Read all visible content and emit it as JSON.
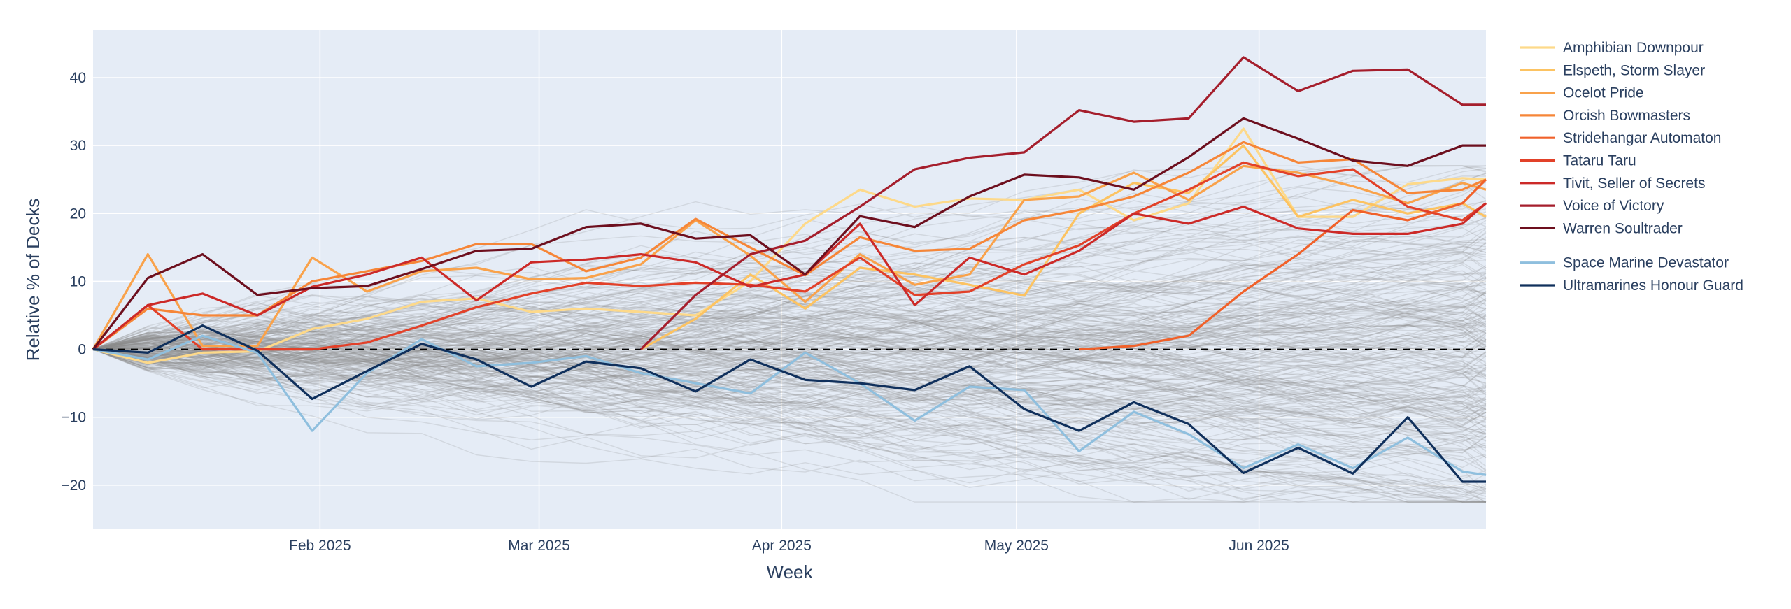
{
  "chart_data": {
    "type": "line",
    "xlabel": "Week",
    "ylabel": "Relative % of Decks",
    "ylim": [
      -26.5,
      47
    ],
    "xlim": [
      "2025-01-03",
      "2025-06-30"
    ],
    "x_ticks": [
      {
        "date": "2025-02-01",
        "label": "Feb 2025"
      },
      {
        "date": "2025-03-01",
        "label": "Mar 2025"
      },
      {
        "date": "2025-04-01",
        "label": "Apr 2025"
      },
      {
        "date": "2025-05-01",
        "label": "May 2025"
      },
      {
        "date": "2025-06-01",
        "label": "Jun 2025"
      }
    ],
    "y_ticks": [
      -20,
      -10,
      0,
      10,
      20,
      30,
      40
    ],
    "grid": true,
    "reference_line": {
      "y": 0,
      "style": "dashed",
      "color": "#000000"
    },
    "background_series": {
      "count": 260,
      "color": "#8c8c8c",
      "description_range": [
        -22,
        27
      ]
    },
    "legend_position": "right",
    "x": [
      "2025-01-03",
      "2025-01-10",
      "2025-01-17",
      "2025-01-24",
      "2025-01-31",
      "2025-02-07",
      "2025-02-14",
      "2025-02-21",
      "2025-02-28",
      "2025-03-07",
      "2025-03-14",
      "2025-03-21",
      "2025-03-28",
      "2025-04-04",
      "2025-04-11",
      "2025-04-18",
      "2025-04-25",
      "2025-05-02",
      "2025-05-09",
      "2025-05-16",
      "2025-05-23",
      "2025-05-30",
      "2025-06-06",
      "2025-06-13",
      "2025-06-20",
      "2025-06-27",
      "2025-06-30"
    ],
    "series": [
      {
        "name": "Amphibian Downpour",
        "color": "#fdd98a",
        "values": [
          0,
          -2,
          -0.5,
          -0.3,
          3,
          4.5,
          7,
          7.5,
          5.5,
          6,
          null,
          5,
          10,
          18.5,
          23.5,
          21,
          22.2,
          22,
          23.5,
          19,
          21.5,
          32.5,
          19.5,
          19.5,
          24.3,
          25.2,
          25
        ]
      },
      {
        "name": "Elspeth, Storm Slayer",
        "color": "#fcc362",
        "values": [
          null,
          null,
          null,
          null,
          null,
          null,
          null,
          null,
          null,
          null,
          0,
          4.5,
          11,
          6,
          12,
          11,
          9.5,
          7.9,
          20,
          24.5,
          23,
          30,
          19.5,
          22,
          20,
          21.5,
          19.5
        ]
      },
      {
        "name": "Ocelot Pride",
        "color": "#f9a24b",
        "values": [
          0,
          14,
          0.5,
          0.5,
          13.5,
          8.5,
          11.5,
          12,
          10.3,
          10.5,
          12.5,
          19,
          13.8,
          7,
          14,
          9.5,
          11,
          22,
          22.5,
          26,
          22,
          27,
          26,
          24,
          21.5,
          24.5,
          23.5
        ]
      },
      {
        "name": "Orcish Bowmasters",
        "color": "#f68638",
        "values": [
          0,
          6,
          5,
          5,
          10,
          11.5,
          13,
          15.5,
          15.5,
          11.5,
          13.5,
          19.2,
          15,
          10.9,
          16.5,
          14.5,
          14.8,
          19,
          20.5,
          22.5,
          26,
          30.5,
          27.5,
          28,
          23,
          23.5,
          25
        ]
      },
      {
        "name": "Stridehangar Automaton",
        "color": "#f0612a",
        "values": [
          null,
          null,
          null,
          null,
          null,
          null,
          null,
          null,
          null,
          null,
          null,
          null,
          null,
          null,
          null,
          null,
          null,
          null,
          0,
          0.5,
          2,
          8.5,
          14,
          20.5,
          19,
          21.5,
          25
        ]
      },
      {
        "name": "Tataru Taru",
        "color": "#e24129",
        "values": [
          0,
          6.5,
          0,
          0,
          0,
          1,
          3.5,
          6.2,
          8.2,
          9.8,
          9.3,
          9.8,
          9.5,
          8.5,
          13.5,
          8,
          8.5,
          12.5,
          15.3,
          20,
          23.5,
          27.5,
          25.5,
          26.5,
          21,
          19,
          21.5
        ]
      },
      {
        "name": "Tivit, Seller of Secrets",
        "color": "#cc2a28",
        "values": [
          0,
          6.5,
          8.2,
          5,
          9.2,
          11,
          13.5,
          7.2,
          12.8,
          13.2,
          14,
          12.8,
          9.2,
          11,
          18.5,
          6.5,
          13.5,
          11,
          14.5,
          20,
          18.5,
          21,
          17.8,
          17,
          17,
          18.5,
          21.5
        ]
      },
      {
        "name": "Voice of Victory",
        "color": "#a51e2c",
        "values": [
          null,
          null,
          null,
          null,
          null,
          null,
          null,
          null,
          null,
          null,
          0,
          8,
          14,
          16,
          21,
          26.5,
          28.2,
          29,
          35.2,
          33.5,
          34,
          43,
          38,
          41,
          41.2,
          36,
          36
        ]
      },
      {
        "name": "Warren Soultrader",
        "color": "#6d0f1e",
        "values": [
          0,
          10.5,
          14,
          8,
          9,
          9.3,
          11.8,
          14.5,
          14.8,
          18,
          18.5,
          16.3,
          16.8,
          11,
          19.6,
          18,
          22.5,
          25.7,
          25.3,
          23.5,
          28.3,
          34,
          31,
          27.8,
          27,
          30,
          30
        ]
      },
      {
        "name": "Space Marine Devastator",
        "color": "#8fbfde",
        "values": [
          0,
          -1.5,
          2,
          -0.5,
          -12,
          -3.5,
          1.5,
          -2.5,
          -2,
          -1,
          -3.5,
          -5,
          -6.5,
          -0.5,
          -5,
          -10.5,
          -5.5,
          -6,
          -15,
          -9.2,
          -12.5,
          -17.5,
          -14,
          -17.5,
          -13,
          -18,
          -18.5
        ]
      },
      {
        "name": "Ultramarines Honour Guard",
        "color": "#10305c",
        "values": [
          0,
          -0.5,
          3.5,
          -0.2,
          -7.3,
          -3.2,
          0.8,
          -1.5,
          -5.5,
          -1.8,
          -2.8,
          -6.2,
          -1.5,
          -4.5,
          -5,
          -6,
          -2.5,
          -8.8,
          -12,
          -7.8,
          -11,
          -18.2,
          -14.5,
          -18.3,
          -10,
          -19.5,
          -19.5
        ]
      }
    ]
  }
}
